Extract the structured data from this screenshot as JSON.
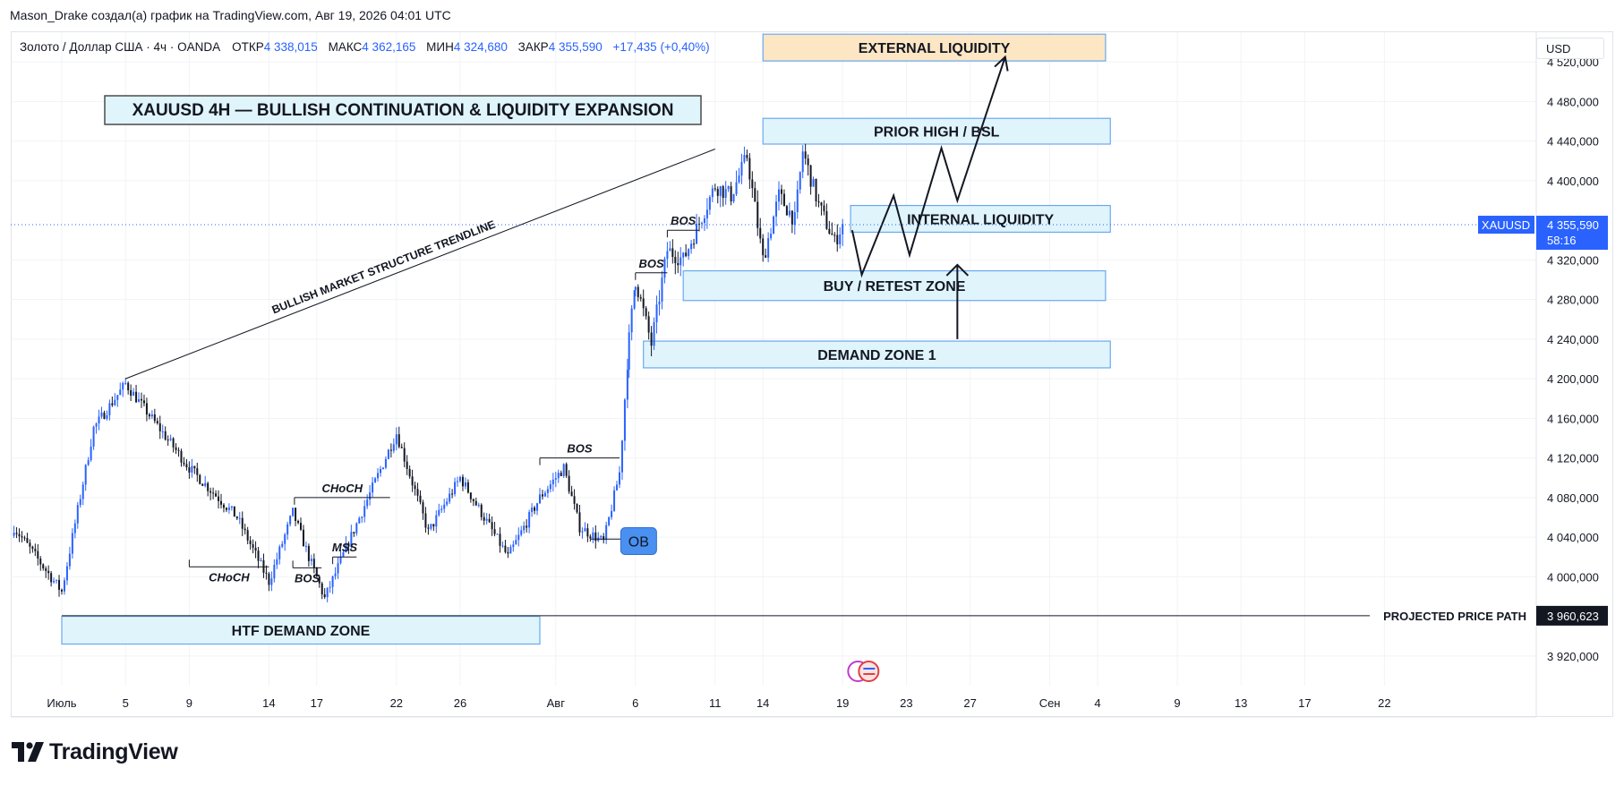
{
  "header": {
    "attribution": "Mason_Drake создал(а) график на TradingView.com, Авг 19, 2026 04:01 UTC"
  },
  "legend": {
    "symbol": "Золото / Доллар США · 4ч · OANDA",
    "open_label": "ОТКР",
    "open": "4 338,015",
    "high_label": "МАКС",
    "high": "4 362,165",
    "low_label": "МИН",
    "low": "4 324,680",
    "close_label": "ЗАКР",
    "close": "4 355,590",
    "change": "+17,435 (+0,40%)"
  },
  "currency": "USD",
  "brand": {
    "name": "TradingView"
  },
  "colors": {
    "up": "#2962ff",
    "down": "#131722",
    "zone_fill": "#e0f4fb",
    "zone_border": "#6aa8f0",
    "external_fill": "#fde6c4",
    "external_border": "#6aa8f0",
    "price_tag": "#2962ff"
  },
  "chart_data": {
    "type": "candlestick",
    "title": "XAUUSD 4H — BULLISH CONTINUATION & LIQUIDITY EXPANSION",
    "symbol": "XAUUSD",
    "timeframe": "4ч",
    "ylim": [
      3890,
      4550
    ],
    "y_ticks": [
      3920,
      4000,
      4040,
      4080,
      4120,
      4160,
      4200,
      4240,
      4280,
      4320,
      4400,
      4440,
      4480,
      4520
    ],
    "y_tick_labels": [
      "3 920,000",
      "4 000,000",
      "4 040,000",
      "4 080,000",
      "4 120,000",
      "4 160,000",
      "4 200,000",
      "4 240,000",
      "4 280,000",
      "4 320,000",
      "4 400,000",
      "4 440,000",
      "4 480,000",
      "4 520,000"
    ],
    "x_ticks": [
      {
        "label": "Июль",
        "day": 1
      },
      {
        "label": "5",
        "day": 5
      },
      {
        "label": "9",
        "day": 9
      },
      {
        "label": "14",
        "day": 14
      },
      {
        "label": "17",
        "day": 17
      },
      {
        "label": "22",
        "day": 22
      },
      {
        "label": "26",
        "day": 26
      },
      {
        "label": "Авг",
        "day": 32
      },
      {
        "label": "6",
        "day": 37
      },
      {
        "label": "11",
        "day": 42
      },
      {
        "label": "14",
        "day": 45
      },
      {
        "label": "19",
        "day": 50
      },
      {
        "label": "23",
        "day": 54
      },
      {
        "label": "27",
        "day": 58
      },
      {
        "label": "Сен",
        "day": 63
      },
      {
        "label": "4",
        "day": 66
      },
      {
        "label": "9",
        "day": 71
      },
      {
        "label": "13",
        "day": 75
      },
      {
        "label": "17",
        "day": 79
      },
      {
        "label": "22",
        "day": 84
      }
    ],
    "price_line": {
      "label": "XAUUSD",
      "value": 4355.59,
      "value_label": "4 355,590",
      "countdown": "58:16"
    },
    "projected_line": {
      "label": "PROJECTED PRICE PATH",
      "value": 3960.623,
      "value_label": "3 960,623"
    },
    "anchors": [
      {
        "day": -2,
        "price": 4050
      },
      {
        "day": 1,
        "price": 3985
      },
      {
        "day": 3,
        "price": 4150
      },
      {
        "day": 5,
        "price": 4195
      },
      {
        "day": 9,
        "price": 4110
      },
      {
        "day": 12,
        "price": 4060
      },
      {
        "day": 14,
        "price": 3995
      },
      {
        "day": 15.5,
        "price": 4065
      },
      {
        "day": 16.5,
        "price": 4020
      },
      {
        "day": 17.5,
        "price": 3978
      },
      {
        "day": 19,
        "price": 4035
      },
      {
        "day": 22,
        "price": 4145
      },
      {
        "day": 24,
        "price": 4045
      },
      {
        "day": 26,
        "price": 4100
      },
      {
        "day": 29,
        "price": 4020
      },
      {
        "day": 31,
        "price": 4080
      },
      {
        "day": 32.5,
        "price": 4110
      },
      {
        "day": 33.5,
        "price": 4050
      },
      {
        "day": 35,
        "price": 4035
      },
      {
        "day": 36,
        "price": 4105
      },
      {
        "day": 36.6,
        "price": 4240
      },
      {
        "day": 37,
        "price": 4300
      },
      {
        "day": 38,
        "price": 4235
      },
      {
        "day": 39,
        "price": 4330
      },
      {
        "day": 40,
        "price": 4320
      },
      {
        "day": 42,
        "price": 4395
      },
      {
        "day": 43,
        "price": 4385
      },
      {
        "day": 44,
        "price": 4425
      },
      {
        "day": 45,
        "price": 4320
      },
      {
        "day": 46,
        "price": 4385
      },
      {
        "day": 47,
        "price": 4360
      },
      {
        "day": 47.5,
        "price": 4430
      },
      {
        "day": 48.5,
        "price": 4375
      },
      {
        "day": 49.5,
        "price": 4338
      },
      {
        "day": 50,
        "price": 4356
      }
    ],
    "zones": [
      {
        "label": "EXTERNAL LIQUIDITY",
        "from_day": 45,
        "to_day": 66.5,
        "top": 4548,
        "bottom": 4521,
        "style": "external"
      },
      {
        "label": "PRIOR HIGH / BSL",
        "from_day": 45,
        "to_day": 66.8,
        "top": 4463,
        "bottom": 4437,
        "style": "zone"
      },
      {
        "label": "INTERNAL LIQUIDITY",
        "from_day": 50.5,
        "to_day": 66.8,
        "top": 4375,
        "bottom": 4348,
        "style": "zone"
      },
      {
        "label": "BUY / RETEST ZONE",
        "from_day": 40,
        "to_day": 66.5,
        "top": 4309,
        "bottom": 4279,
        "style": "zone"
      },
      {
        "label": "DEMAND ZONE 1",
        "from_day": 37.5,
        "to_day": 66.8,
        "top": 4238,
        "bottom": 4211,
        "style": "zone"
      },
      {
        "label": "HTF DEMAND ZONE",
        "from_day": 1,
        "to_day": 31,
        "top": 3960,
        "bottom": 3932,
        "style": "zone"
      }
    ],
    "trendline": {
      "label": "BULLISH MARKET STRUCTURE TRENDLINE",
      "from": {
        "day": 5,
        "price": 4200
      },
      "to": {
        "day": 42,
        "price": 4432
      }
    },
    "structure_marks": [
      {
        "label": "CHoCH",
        "from_day": 9,
        "to_day": 14,
        "price": 4010,
        "label_pos": "below"
      },
      {
        "label": "BOS",
        "from_day": 15.5,
        "to_day": 17.3,
        "price": 4009,
        "label_pos": "below"
      },
      {
        "label": "MSS",
        "from_day": 18,
        "to_day": 19.5,
        "price": 4020,
        "label_pos": "above"
      },
      {
        "label": "CHoCH",
        "from_day": 15.6,
        "to_day": 21.6,
        "price": 4080,
        "label_pos": "above"
      },
      {
        "label": "BOS",
        "from_day": 31,
        "to_day": 36,
        "price": 4120,
        "label_pos": "above"
      },
      {
        "label": "BOS",
        "from_day": 37,
        "to_day": 39,
        "price": 4307,
        "label_pos": "above"
      },
      {
        "label": "BOS",
        "from_day": 39,
        "to_day": 41,
        "price": 4350,
        "label_pos": "above"
      }
    ],
    "ob_marker": {
      "label": "OB",
      "day": 37.2,
      "price": 4036,
      "from_day": 34.2,
      "line_price": 4038
    },
    "projected_path": [
      {
        "day": 50.6,
        "price": 4350
      },
      {
        "day": 51.2,
        "price": 4305
      },
      {
        "day": 53.2,
        "price": 4385
      },
      {
        "day": 54.2,
        "price": 4325
      },
      {
        "day": 56.2,
        "price": 4433
      },
      {
        "day": 57.2,
        "price": 4380
      },
      {
        "day": 60.2,
        "price": 4525
      }
    ],
    "up_arrow": {
      "day": 57.2,
      "from_price": 4240,
      "to_price": 4315
    }
  }
}
